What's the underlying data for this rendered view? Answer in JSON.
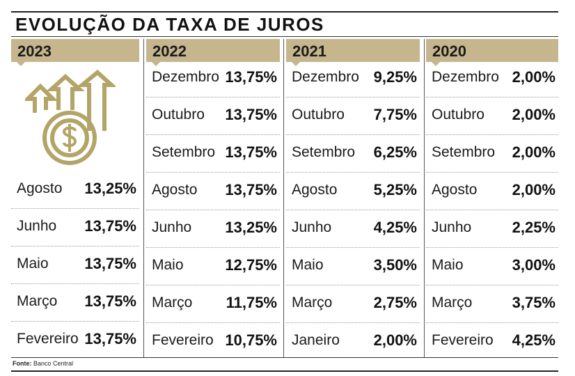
{
  "title": "EVOLUÇÃO DA TAXA DE JUROS",
  "source_label": "Fonte:",
  "source_value": "Banco Central",
  "icon": "money-growth-icon",
  "colors": {
    "header_bg": "#c6b68e",
    "icon": "#b3a467"
  },
  "chart_data": {
    "type": "table",
    "title": "EVOLUÇÃO DA TAXA DE JUROS",
    "columns": [
      {
        "year": "2023",
        "rows": [
          {
            "month": "Agosto",
            "rate": "13,25%"
          },
          {
            "month": "Junho",
            "rate": "13,75%"
          },
          {
            "month": "Maio",
            "rate": "13,75%"
          },
          {
            "month": "Março",
            "rate": "13,75%"
          },
          {
            "month": "Fevereiro",
            "rate": "13,75%"
          }
        ]
      },
      {
        "year": "2022",
        "rows": [
          {
            "month": "Dezembro",
            "rate": "13,75%"
          },
          {
            "month": "Outubro",
            "rate": "13,75%"
          },
          {
            "month": "Setembro",
            "rate": "13,75%"
          },
          {
            "month": "Agosto",
            "rate": "13,75%"
          },
          {
            "month": "Junho",
            "rate": "13,25%"
          },
          {
            "month": "Maio",
            "rate": "12,75%"
          },
          {
            "month": "Março",
            "rate": "11,75%"
          },
          {
            "month": "Fevereiro",
            "rate": "10,75%"
          }
        ]
      },
      {
        "year": "2021",
        "rows": [
          {
            "month": "Dezembro",
            "rate": "9,25%"
          },
          {
            "month": "Outubro",
            "rate": "7,75%"
          },
          {
            "month": "Setembro",
            "rate": "6,25%"
          },
          {
            "month": "Agosto",
            "rate": "5,25%"
          },
          {
            "month": "Junho",
            "rate": "4,25%"
          },
          {
            "month": "Maio",
            "rate": "3,50%"
          },
          {
            "month": "Março",
            "rate": "2,75%"
          },
          {
            "month": "Janeiro",
            "rate": "2,00%"
          }
        ]
      },
      {
        "year": "2020",
        "rows": [
          {
            "month": "Dezembro",
            "rate": "2,00%"
          },
          {
            "month": "Outubro",
            "rate": "2,00%"
          },
          {
            "month": "Setembro",
            "rate": "2,00%"
          },
          {
            "month": "Agosto",
            "rate": "2,00%"
          },
          {
            "month": "Junho",
            "rate": "2,25%"
          },
          {
            "month": "Maio",
            "rate": "3,00%"
          },
          {
            "month": "Março",
            "rate": "3,75%"
          },
          {
            "month": "Fevereiro",
            "rate": "4,25%"
          }
        ]
      }
    ]
  }
}
